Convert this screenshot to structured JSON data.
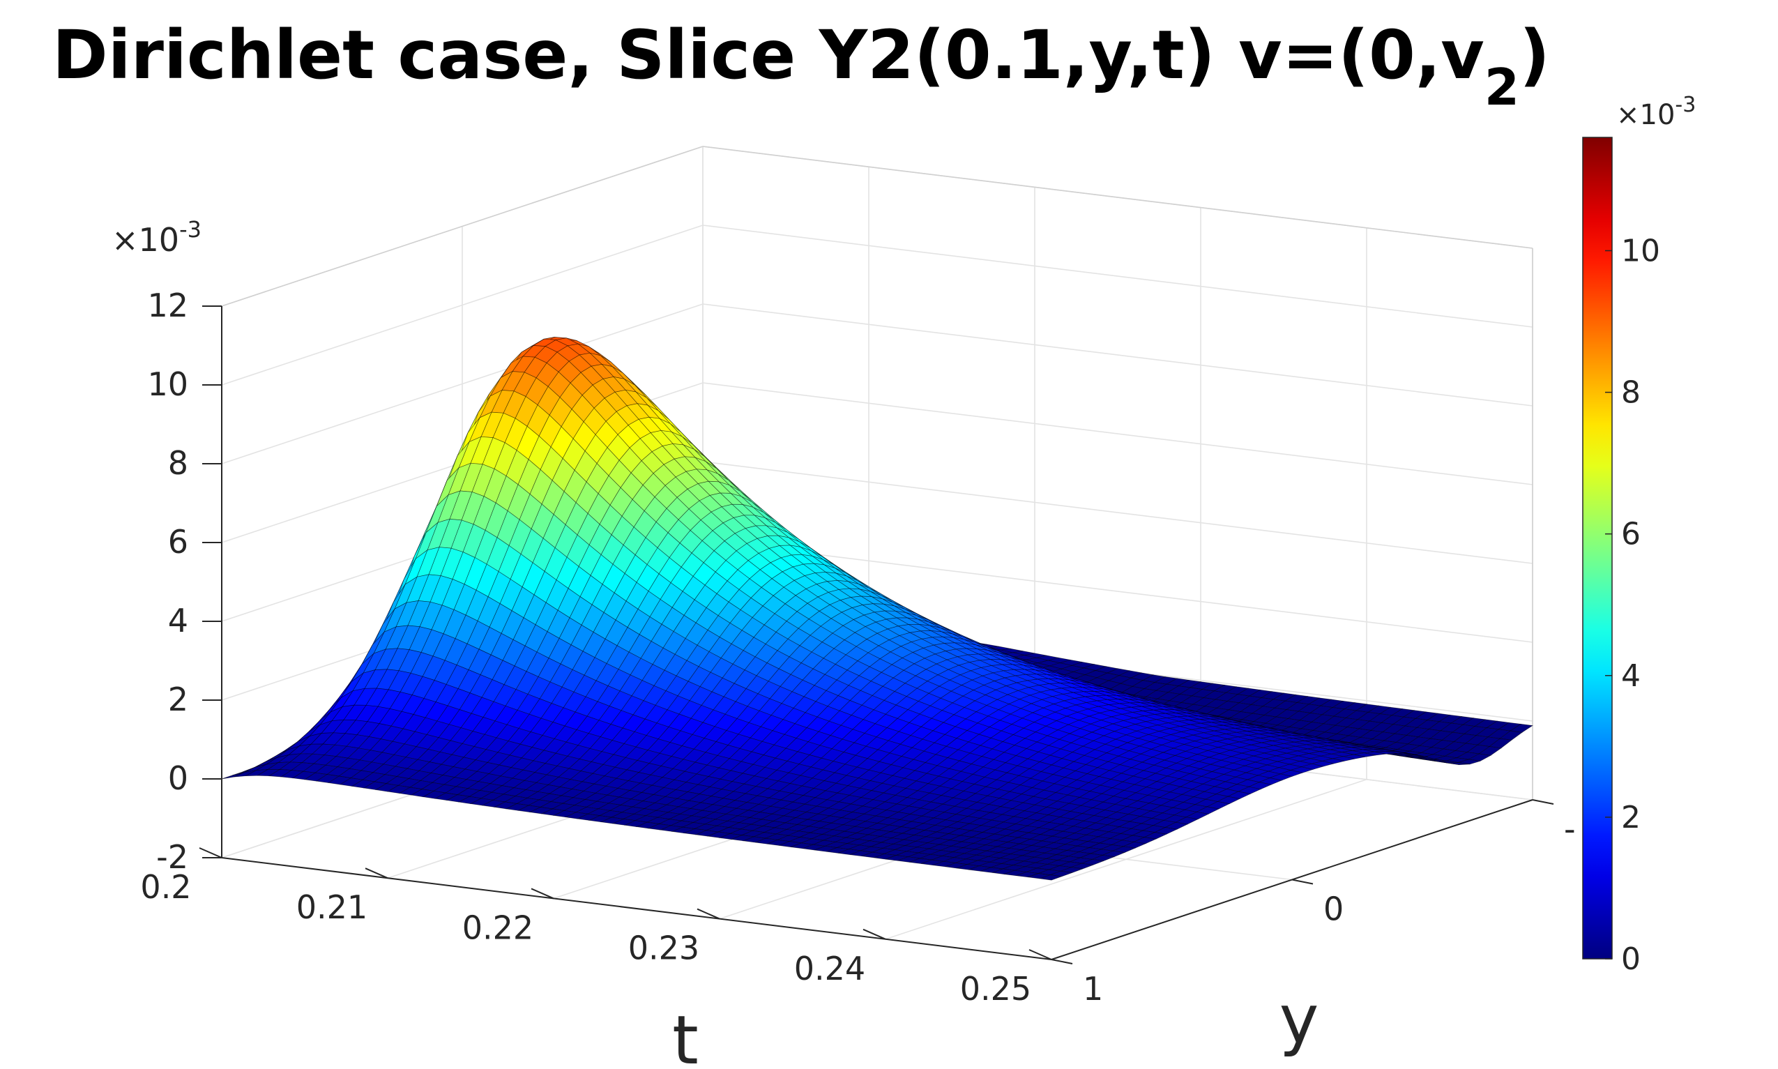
{
  "chart_data": {
    "type": "surface",
    "title": "Dirichlet case, Slice Y2(0.1,y,t) v=(0,v",
    "title_subscript": "2",
    "title_close": ")",
    "xlabel": "t",
    "ylabel": "y",
    "zlabel": "",
    "xlim": [
      0.2,
      0.25
    ],
    "ylim": [
      -1,
      1
    ],
    "zlim": [
      -0.002,
      0.012
    ],
    "x_ticks": [
      0.2,
      0.21,
      0.22,
      0.23,
      0.24,
      0.25
    ],
    "x_tick_labels": [
      "0.2",
      "0.21",
      "0.22",
      "0.23",
      "0.24",
      "0.25"
    ],
    "y_ticks": [
      -1,
      0,
      1
    ],
    "y_tick_labels": [
      "-",
      "0",
      "1"
    ],
    "z_ticks": [
      -0.002,
      0,
      0.002,
      0.004,
      0.006,
      0.008,
      0.01,
      0.012
    ],
    "z_tick_labels": [
      "-2",
      "0",
      "2",
      "4",
      "6",
      "8",
      "10",
      "12"
    ],
    "z_exponent_base": "×10",
    "z_exponent_power": "-3",
    "colorbar": {
      "colormap": "jet",
      "range": [
        0,
        0.0116
      ],
      "ticks": [
        0,
        0.002,
        0.004,
        0.006,
        0.008,
        0.01
      ],
      "tick_labels": [
        "0",
        "2",
        "4",
        "6",
        "8",
        "10"
      ],
      "exponent_base": "×10",
      "exponent_power": "-3"
    },
    "surface_peak": {
      "t": 0.2055,
      "y": -0.05,
      "z": 0.0116
    },
    "grid": true,
    "edge_color": "#000000"
  }
}
